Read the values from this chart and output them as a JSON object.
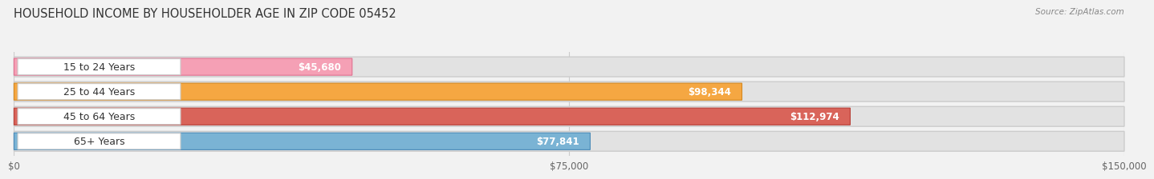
{
  "title": "HOUSEHOLD INCOME BY HOUSEHOLDER AGE IN ZIP CODE 05452",
  "source": "Source: ZipAtlas.com",
  "categories": [
    "15 to 24 Years",
    "25 to 44 Years",
    "45 to 64 Years",
    "65+ Years"
  ],
  "values": [
    45680,
    98344,
    112974,
    77841
  ],
  "bar_colors": [
    "#f5a0b5",
    "#f5a742",
    "#d9645a",
    "#7ab3d4"
  ],
  "bar_border_colors": [
    "#e07090",
    "#d48820",
    "#b84038",
    "#4a8ab8"
  ],
  "value_labels": [
    "$45,680",
    "$98,344",
    "$112,974",
    "$77,841"
  ],
  "xlim": [
    0,
    150000
  ],
  "xticks": [
    0,
    75000,
    150000
  ],
  "xtick_labels": [
    "$0",
    "$75,000",
    "$150,000"
  ],
  "bg_color": "#f2f2f2",
  "bar_bg_color": "#e2e2e2",
  "bar_bg_border": "#cccccc",
  "title_fontsize": 10.5,
  "source_fontsize": 7.5,
  "label_fontsize": 9,
  "value_fontsize": 8.5,
  "tick_fontsize": 8.5
}
